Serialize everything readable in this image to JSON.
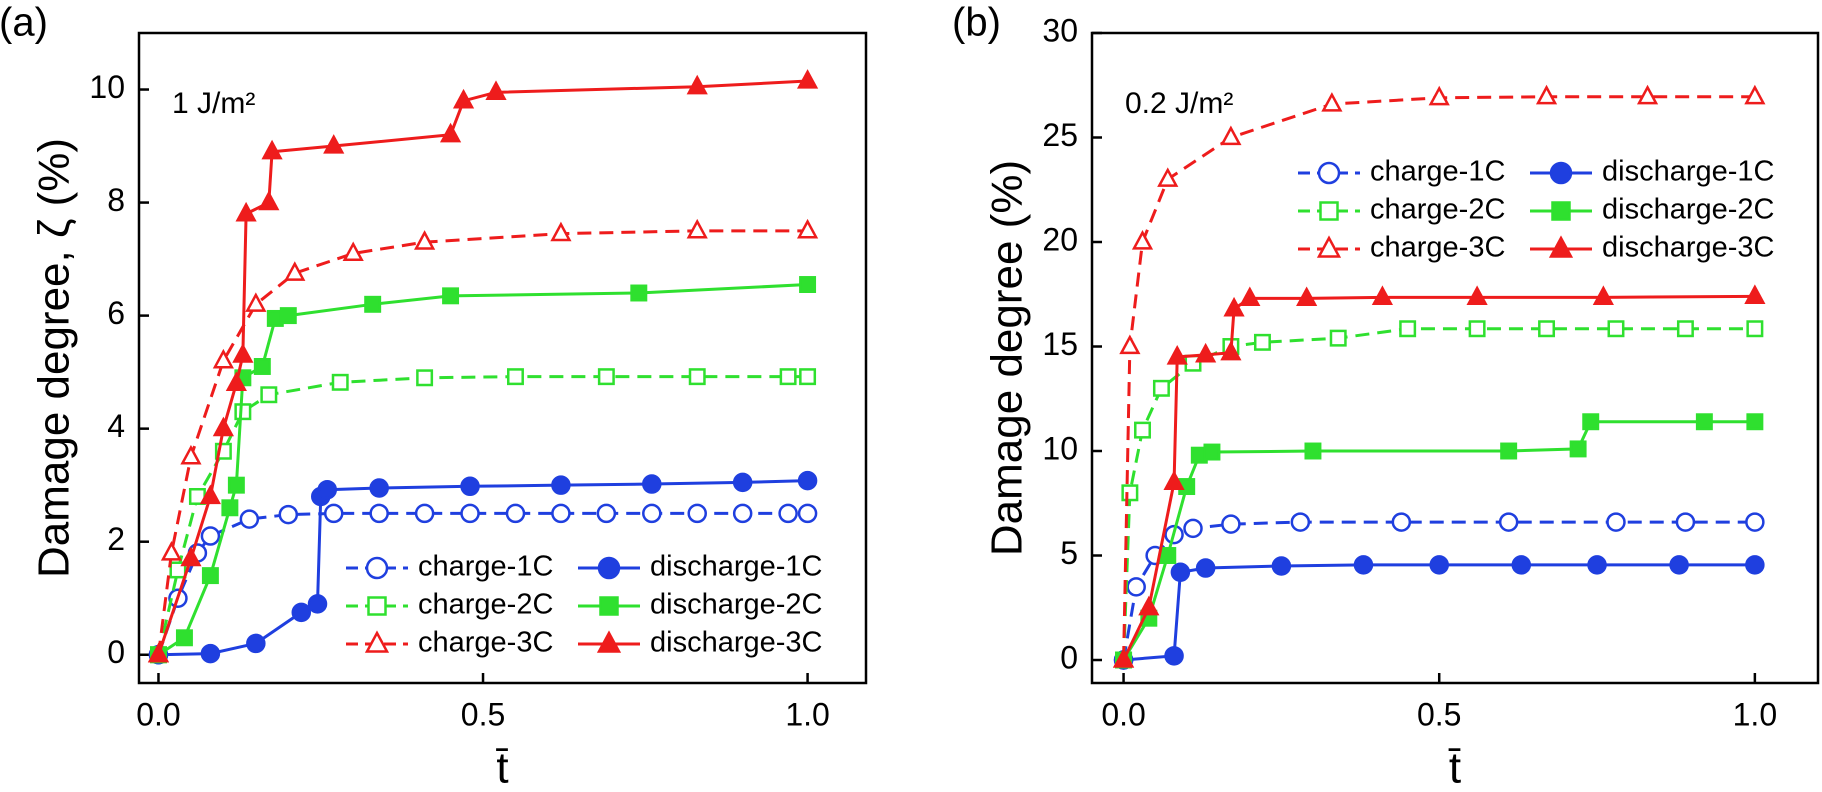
{
  "chart_data": [
    {
      "type": "line",
      "panel_label": "(a)",
      "ylabel": "Damage degree, ζ (%)",
      "xlabel": "t̄",
      "annotation": "1 J/m²",
      "xlim": [
        -0.03,
        1.09
      ],
      "ylim": [
        -0.5,
        11
      ],
      "xticks": [
        {
          "value": 0,
          "label": "0.0"
        },
        0.5,
        {
          "value": 1,
          "label": "1.0"
        }
      ],
      "yticks": [
        0,
        2,
        4,
        6,
        8,
        10
      ],
      "legend": "lower right",
      "series": [
        {
          "name": "charge-1C",
          "color": "#1f3fdf",
          "dash": true,
          "marker": "circle",
          "filled": false,
          "x": [
            0,
            0.03,
            0.06,
            0.08,
            0.14,
            0.2,
            0.27,
            0.34,
            0.41,
            0.48,
            0.55,
            0.62,
            0.69,
            0.76,
            0.83,
            0.9,
            0.97,
            1
          ],
          "values": [
            0,
            1,
            1.8,
            2.1,
            2.4,
            2.48,
            2.5,
            2.5,
            2.5,
            2.5,
            2.5,
            2.5,
            2.5,
            2.5,
            2.5,
            2.5,
            2.5,
            2.5
          ]
        },
        {
          "name": "discharge-1C",
          "color": "#1f3fdf",
          "dash": false,
          "marker": "circle",
          "filled": true,
          "x": [
            0,
            0.08,
            0.15,
            0.22,
            0.245,
            0.25,
            0.26,
            0.34,
            0.48,
            0.62,
            0.76,
            0.9,
            1
          ],
          "values": [
            0,
            0.02,
            0.2,
            0.75,
            0.9,
            2.8,
            2.92,
            2.95,
            2.98,
            3.0,
            3.02,
            3.05,
            3.08
          ]
        },
        {
          "name": "charge-2C",
          "color": "#2fe02f",
          "dash": true,
          "marker": "square",
          "filled": false,
          "x": [
            0,
            0.03,
            0.06,
            0.1,
            0.13,
            0.17,
            0.28,
            0.41,
            0.55,
            0.69,
            0.83,
            0.97,
            1
          ],
          "values": [
            0,
            1.5,
            2.8,
            3.6,
            4.3,
            4.6,
            4.82,
            4.9,
            4.92,
            4.92,
            4.92,
            4.92,
            4.92
          ]
        },
        {
          "name": "discharge-2C",
          "color": "#2fe02f",
          "dash": false,
          "marker": "square",
          "filled": true,
          "x": [
            0,
            0.04,
            0.08,
            0.11,
            0.12,
            0.13,
            0.16,
            0.18,
            0.2,
            0.33,
            0.45,
            0.74,
            1
          ],
          "values": [
            0,
            0.3,
            1.4,
            2.6,
            3.0,
            4.9,
            5.1,
            5.95,
            6.0,
            6.2,
            6.35,
            6.4,
            6.55
          ]
        },
        {
          "name": "charge-3C",
          "color": "#ee1c1c",
          "dash": true,
          "marker": "triangle",
          "filled": false,
          "x": [
            0,
            0.02,
            0.05,
            0.1,
            0.15,
            0.21,
            0.3,
            0.41,
            0.62,
            0.83,
            1
          ],
          "values": [
            0,
            1.8,
            3.5,
            5.2,
            6.2,
            6.75,
            7.1,
            7.3,
            7.45,
            7.5,
            7.5
          ]
        },
        {
          "name": "discharge-3C",
          "color": "#ee1c1c",
          "dash": false,
          "marker": "triangle",
          "filled": true,
          "x": [
            0,
            0.05,
            0.08,
            0.1,
            0.12,
            0.13,
            0.135,
            0.17,
            0.175,
            0.27,
            0.45,
            0.47,
            0.52,
            0.83,
            1
          ],
          "values": [
            0,
            1.7,
            2.8,
            4.0,
            4.8,
            5.3,
            7.8,
            8.0,
            8.9,
            9.0,
            9.2,
            9.8,
            9.95,
            10.05,
            10.15
          ]
        }
      ]
    },
    {
      "type": "line",
      "panel_label": "(b)",
      "ylabel": "Damage degree (%)",
      "xlabel": "t̄",
      "annotation": "0.2 J/m²",
      "xlim": [
        -0.05,
        1.1
      ],
      "ylim": [
        -1.1,
        30
      ],
      "xticks": [
        {
          "value": 0,
          "label": "0.0"
        },
        0.5,
        {
          "value": 1,
          "label": "1.0"
        }
      ],
      "yticks": [
        0,
        5,
        10,
        15,
        20,
        25,
        30
      ],
      "legend": "upper right",
      "series": [
        {
          "name": "charge-1C",
          "color": "#1f3fdf",
          "dash": true,
          "marker": "circle",
          "filled": false,
          "x": [
            0,
            0.02,
            0.05,
            0.08,
            0.11,
            0.17,
            0.28,
            0.44,
            0.61,
            0.78,
            0.89,
            1
          ],
          "values": [
            0,
            3.5,
            5,
            6,
            6.3,
            6.5,
            6.6,
            6.6,
            6.6,
            6.6,
            6.6,
            6.6
          ]
        },
        {
          "name": "discharge-1C",
          "color": "#1f3fdf",
          "dash": false,
          "marker": "circle",
          "filled": true,
          "x": [
            0,
            0.08,
            0.09,
            0.13,
            0.25,
            0.38,
            0.5,
            0.63,
            0.75,
            0.88,
            1
          ],
          "values": [
            0,
            0.2,
            4.2,
            4.4,
            4.5,
            4.55,
            4.55,
            4.55,
            4.55,
            4.55,
            4.55
          ]
        },
        {
          "name": "charge-2C",
          "color": "#2fe02f",
          "dash": true,
          "marker": "square",
          "filled": false,
          "x": [
            0,
            0.01,
            0.03,
            0.06,
            0.11,
            0.17,
            0.22,
            0.34,
            0.45,
            0.56,
            0.67,
            0.78,
            0.89,
            1
          ],
          "values": [
            0,
            8,
            11,
            13,
            14.2,
            15,
            15.2,
            15.4,
            15.85,
            15.85,
            15.85,
            15.85,
            15.85,
            15.85
          ]
        },
        {
          "name": "discharge-2C",
          "color": "#2fe02f",
          "dash": false,
          "marker": "square",
          "filled": true,
          "x": [
            0,
            0.04,
            0.07,
            0.1,
            0.12,
            0.14,
            0.3,
            0.61,
            0.72,
            0.74,
            0.92,
            1
          ],
          "values": [
            0,
            2,
            5,
            8.3,
            9.8,
            9.95,
            10,
            10,
            10.1,
            11.4,
            11.4,
            11.4
          ]
        },
        {
          "name": "charge-3C",
          "color": "#ee1c1c",
          "dash": true,
          "marker": "triangle",
          "filled": false,
          "x": [
            0,
            0.01,
            0.03,
            0.07,
            0.17,
            0.33,
            0.5,
            0.67,
            0.83,
            1
          ],
          "values": [
            0,
            15,
            20,
            23,
            25,
            26.6,
            26.9,
            26.95,
            26.95,
            26.95
          ]
        },
        {
          "name": "discharge-3C",
          "color": "#ee1c1c",
          "dash": false,
          "marker": "triangle",
          "filled": true,
          "x": [
            0,
            0.04,
            0.08,
            0.085,
            0.13,
            0.17,
            0.175,
            0.2,
            0.29,
            0.41,
            0.56,
            0.76,
            1
          ],
          "values": [
            0,
            2.5,
            8.5,
            14.5,
            14.6,
            14.7,
            16.8,
            17.3,
            17.3,
            17.35,
            17.35,
            17.35,
            17.4
          ]
        }
      ]
    }
  ]
}
